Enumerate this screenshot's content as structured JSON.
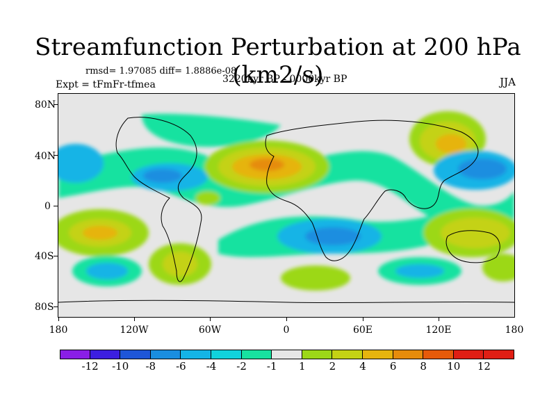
{
  "title": "Streamfunction Perturbation at 200 hPa (km2/s)",
  "stats": "rmsd= 1.97085 diff= 1.8886e-08",
  "period": "3220kyr BP - 0000kyr BP",
  "experiment": "Expt = tFmFr-tfmea",
  "season": "JJA",
  "y_axis_labels": [
    "80N",
    "40N",
    "0",
    "40S",
    "80S"
  ],
  "x_axis_labels": [
    "180",
    "120W",
    "60W",
    "0",
    "60E",
    "120E",
    "180"
  ],
  "colorbar": {
    "labels": [
      "-12",
      "-10",
      "-8",
      "-6",
      "-4",
      "-2",
      "-1",
      "1",
      "2",
      "4",
      "6",
      "8",
      "10",
      "12"
    ],
    "colors": [
      "#8a1ee6",
      "#3c1fe0",
      "#1e56d8",
      "#1a8ee0",
      "#14b4e6",
      "#10d2dc",
      "#18e2a0",
      "#e6e6e6",
      "#9cd818",
      "#c4d214",
      "#e6b40e",
      "#e68c0c",
      "#e65a0a",
      "#e01e14",
      "#e01e14"
    ]
  }
}
